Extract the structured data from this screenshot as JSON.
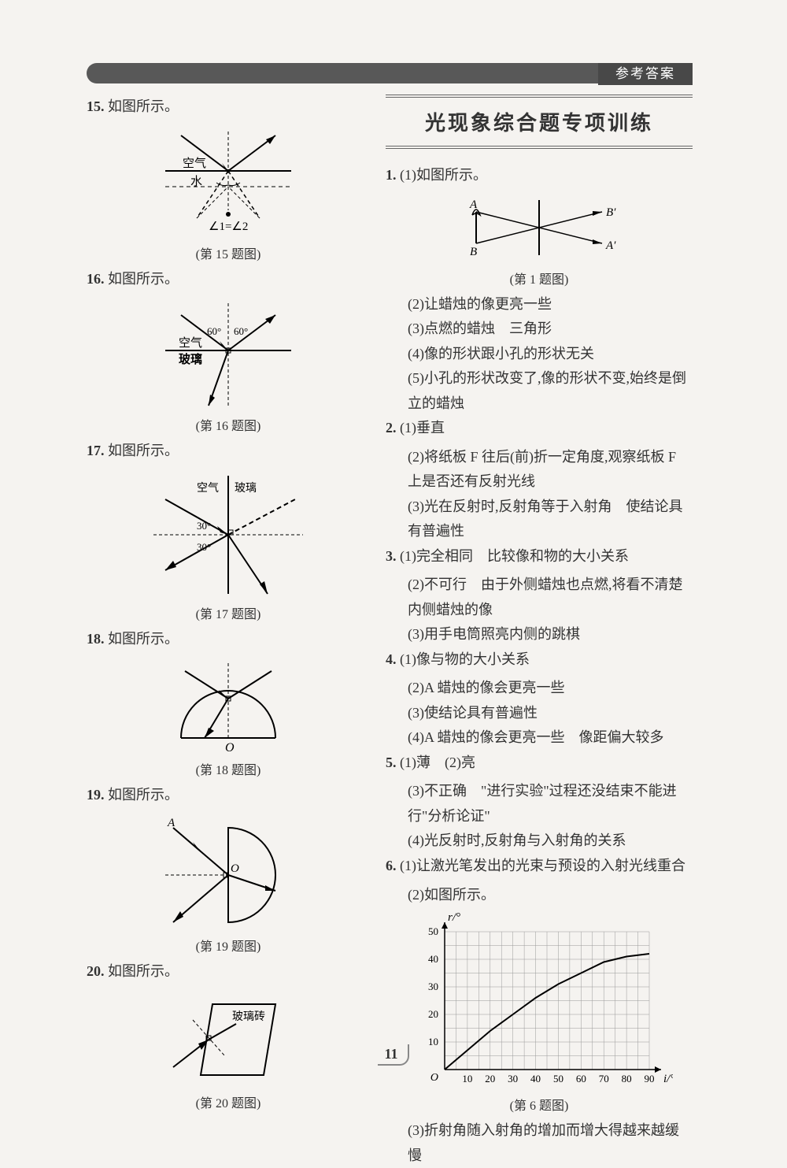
{
  "header": {
    "tab_label": "参考答案"
  },
  "left": {
    "q15": {
      "num": "15.",
      "text": "如图所示。",
      "caption": "(第 15 题图)",
      "labels": {
        "air": "空气",
        "water": "水",
        "angles": "∠1=∠2"
      }
    },
    "q16": {
      "num": "16.",
      "text": "如图所示。",
      "caption": "(第 16 题图)",
      "labels": {
        "air": "空气",
        "glass": "玻璃",
        "a1": "60°",
        "a2": "60°"
      }
    },
    "q17": {
      "num": "17.",
      "text": "如图所示。",
      "caption": "(第 17 题图)",
      "labels": {
        "air": "空气",
        "glass": "玻璃",
        "a1": "30°",
        "a2": "30°"
      }
    },
    "q18": {
      "num": "18.",
      "text": "如图所示。",
      "caption": "(第 18 题图)",
      "labels": {
        "O": "O"
      }
    },
    "q19": {
      "num": "19.",
      "text": "如图所示。",
      "caption": "(第 19 题图)",
      "labels": {
        "A": "A",
        "O": "O"
      }
    },
    "q20": {
      "num": "20.",
      "text": "如图所示。",
      "caption": "(第 20 题图)",
      "labels": {
        "glass": "玻璃砖"
      }
    }
  },
  "right": {
    "section_title": "光现象综合题专项训练",
    "q1": {
      "num": "1.",
      "part1": "(1)如图所示。",
      "caption": "(第 1 题图)",
      "labels": {
        "A": "A",
        "B": "B",
        "Ap": "A′",
        "Bp": "B′"
      },
      "lines": [
        "(2)让蜡烛的像更亮一些",
        "(3)点燃的蜡烛　三角形",
        "(4)像的形状跟小孔的形状无关",
        "(5)小孔的形状改变了,像的形状不变,始终是倒立的蜡烛"
      ]
    },
    "q2": {
      "num": "2.",
      "lines": [
        "(1)垂直",
        "(2)将纸板 F 往后(前)折一定角度,观察纸板 F 上是否还有反射光线",
        "(3)光在反射时,反射角等于入射角　使结论具有普遍性"
      ]
    },
    "q3": {
      "num": "3.",
      "lines": [
        "(1)完全相同　比较像和物的大小关系",
        "(2)不可行　由于外侧蜡烛也点燃,将看不清楚内侧蜡烛的像",
        "(3)用手电筒照亮内侧的跳棋"
      ]
    },
    "q4": {
      "num": "4.",
      "lines": [
        "(1)像与物的大小关系",
        "(2)A 蜡烛的像会更亮一些",
        "(3)使结论具有普遍性",
        "(4)A 蜡烛的像会更亮一些　像距偏大较多"
      ]
    },
    "q5": {
      "num": "5.",
      "lines": [
        "(1)薄　(2)亮",
        "(3)不正确　\"进行实验\"过程还没结束不能进行\"分析论证\"",
        "(4)光反射时,反射角与入射角的关系"
      ]
    },
    "q6": {
      "num": "6.",
      "lines": [
        "(1)让激光笔发出的光束与预设的入射光线重合",
        "(2)如图所示。"
      ],
      "chart": {
        "type": "line",
        "xlabel": "i/°",
        "ylabel": "r/°",
        "xlim": [
          0,
          90
        ],
        "ylim": [
          0,
          50
        ],
        "xtick_step": 10,
        "ytick_step": 10,
        "grid_color": "#999",
        "line_color": "#000",
        "line_width": 2,
        "points": [
          [
            0,
            0
          ],
          [
            10,
            7
          ],
          [
            20,
            14
          ],
          [
            30,
            20
          ],
          [
            40,
            26
          ],
          [
            50,
            31
          ],
          [
            60,
            35
          ],
          [
            70,
            39
          ],
          [
            80,
            41
          ],
          [
            90,
            42
          ]
        ]
      },
      "caption": "(第 6 题图)",
      "line3": "(3)折射角随入射角的增加而增大得越来越缓慢"
    }
  },
  "page_number": "11"
}
